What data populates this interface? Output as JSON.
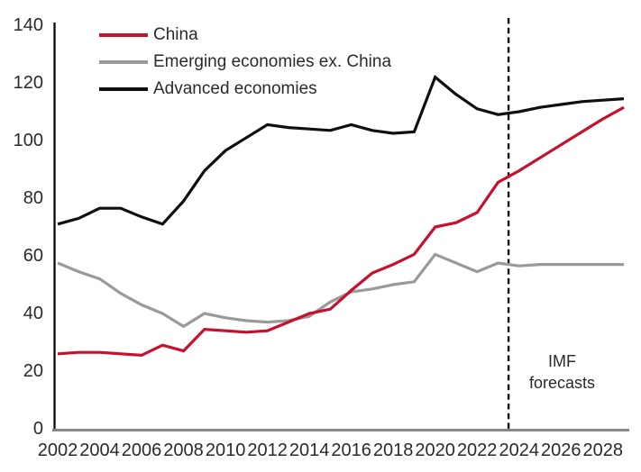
{
  "page": {
    "background": "#ffffff"
  },
  "chart_data": {
    "type": "line",
    "title": "",
    "xlabel": "",
    "ylabel": "",
    "x": [
      2002,
      2003,
      2004,
      2005,
      2006,
      2007,
      2008,
      2009,
      2010,
      2011,
      2012,
      2013,
      2014,
      2015,
      2016,
      2017,
      2018,
      2019,
      2020,
      2021,
      2022,
      2023,
      2024,
      2025,
      2026,
      2027,
      2028,
      2029
    ],
    "x_tick_labels": [
      "2002",
      "2004",
      "2006",
      "2008",
      "2010",
      "2012",
      "2014",
      "2016",
      "2018",
      "2020",
      "2022",
      "2024",
      "2026",
      "2028"
    ],
    "y_ticks": [
      0,
      20,
      40,
      60,
      80,
      100,
      120,
      140
    ],
    "ylim": [
      0,
      140
    ],
    "grid": "off",
    "legend_position": "top-left-inside",
    "series": [
      {
        "id": "china",
        "label": "China",
        "color": "#c8102e",
        "values": [
          26,
          26.5,
          26.5,
          26,
          25.5,
          29,
          27,
          34.5,
          34,
          33.5,
          34,
          37,
          40,
          41.5,
          48,
          54,
          57,
          60.5,
          70,
          71.5,
          75,
          85.5,
          89.5,
          94,
          98.5,
          103,
          107.5,
          111.5
        ]
      },
      {
        "id": "emerging",
        "label": "Emerging economies ex. China",
        "color": "#9a9a9a",
        "values": [
          57.5,
          54.5,
          52,
          47,
          43,
          40,
          35.5,
          40,
          38.5,
          37.5,
          37,
          37.5,
          39,
          44,
          47.5,
          48.5,
          50,
          51,
          60.5,
          57.5,
          54.5,
          57.5,
          56.5,
          57,
          57,
          57,
          57,
          57
        ]
      },
      {
        "id": "advanced",
        "label": "Advanced economies",
        "color": "#0f0f0f",
        "values": [
          71,
          73,
          76.5,
          76.5,
          73.5,
          71,
          79,
          89.5,
          96.5,
          101,
          105.5,
          104.5,
          104,
          103.5,
          105.5,
          103.5,
          102.5,
          103,
          122,
          116,
          111,
          109,
          110,
          111.5,
          112.5,
          113.5,
          114,
          114.5
        ]
      }
    ],
    "draw_order": [
      "emerging",
      "advanced",
      "china"
    ],
    "forecast_divider": {
      "x_year": 2023.5,
      "style": "dashed"
    },
    "annotation": {
      "line1": "IMF",
      "line2": "forecasts"
    }
  },
  "colors": {
    "y_axis": "#000000",
    "x_axis": "#888888",
    "divider": "#111111",
    "text": "#2a2a2a"
  }
}
